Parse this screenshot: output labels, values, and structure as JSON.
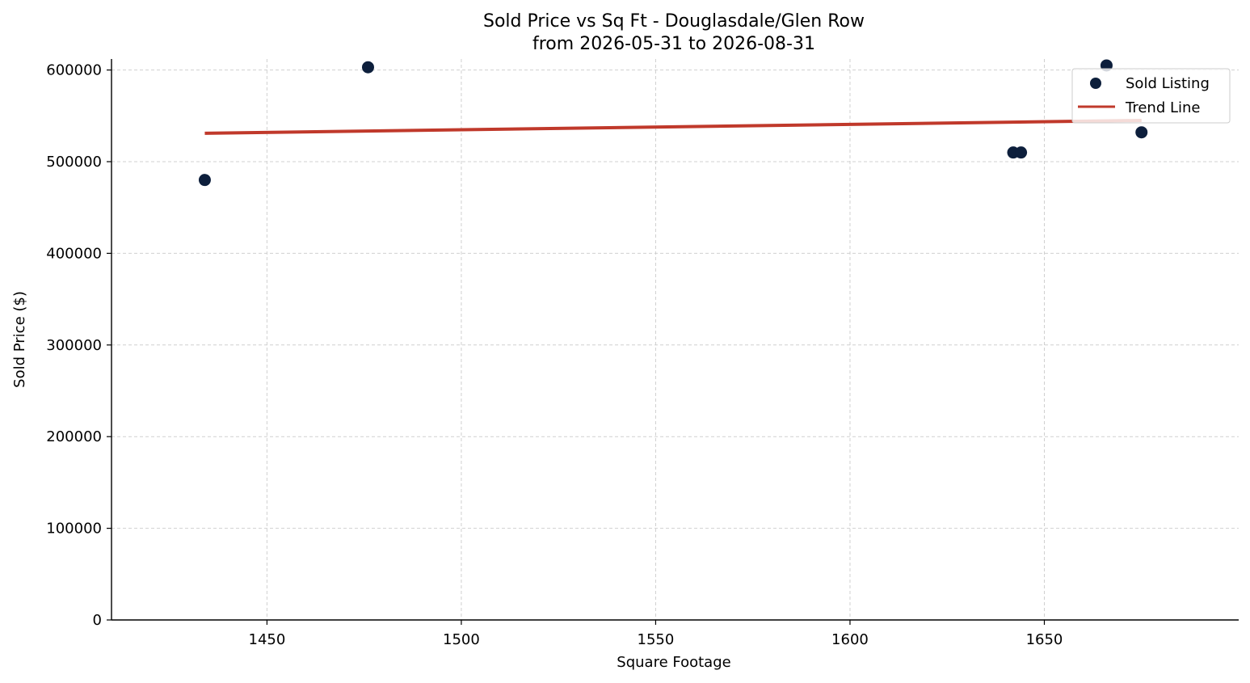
{
  "chart_data": {
    "type": "scatter",
    "title": "Sold Price vs Sq Ft - Douglasdale/Glen Row",
    "subtitle": "from 2026-05-31 to 2026-08-31",
    "xlabel": "Square Footage",
    "ylabel": "Sold Price ($)",
    "xlim": [
      1410,
      1700
    ],
    "ylim": [
      0,
      612000
    ],
    "x_ticks": [
      1450,
      1500,
      1550,
      1600,
      1650
    ],
    "y_ticks": [
      0,
      100000,
      200000,
      300000,
      400000,
      500000,
      600000
    ],
    "grid": true,
    "legend_position": "top-right",
    "series": [
      {
        "name": "Sold Listing",
        "kind": "scatter",
        "color": "#0d1f3c",
        "points": [
          {
            "x": 1434,
            "y": 480000
          },
          {
            "x": 1476,
            "y": 603000
          },
          {
            "x": 1642,
            "y": 510000
          },
          {
            "x": 1644,
            "y": 510000
          },
          {
            "x": 1666,
            "y": 605000
          },
          {
            "x": 1675,
            "y": 532000
          }
        ]
      },
      {
        "name": "Trend Line",
        "kind": "line",
        "color": "#c0392b",
        "points": [
          {
            "x": 1434,
            "y": 531000
          },
          {
            "x": 1675,
            "y": 545000
          }
        ]
      }
    ]
  }
}
